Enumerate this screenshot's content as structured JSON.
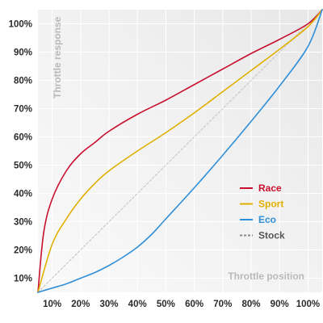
{
  "chart_data": {
    "type": "line",
    "xlabel": "Throttle position",
    "ylabel": "Throttle response",
    "xlim": [
      5,
      105
    ],
    "ylim": [
      5,
      105
    ],
    "xticks": [
      "10%",
      "20%",
      "30%",
      "40%",
      "50%",
      "60%",
      "70%",
      "80%",
      "90%",
      "100%"
    ],
    "yticks": [
      "10%",
      "20%",
      "30%",
      "40%",
      "50%",
      "60%",
      "70%",
      "80%",
      "90%",
      "100%"
    ],
    "grid": true,
    "legend_position": "center-right",
    "series": [
      {
        "name": "Race",
        "color": "#c8102e",
        "dashed": false,
        "x": [
          5,
          7,
          10,
          15,
          20,
          25,
          30,
          40,
          50,
          60,
          70,
          80,
          90,
          100,
          105
        ],
        "y": [
          5,
          26,
          38,
          48,
          54,
          58,
          62,
          68,
          73,
          78.5,
          84,
          89.5,
          94.5,
          100,
          105
        ]
      },
      {
        "name": "Sport",
        "color": "#e0b000",
        "dashed": false,
        "x": [
          5,
          10,
          15,
          20,
          25,
          30,
          40,
          50,
          60,
          70,
          80,
          90,
          100,
          105
        ],
        "y": [
          5,
          22,
          31,
          38,
          43.5,
          48,
          55,
          61.5,
          68.5,
          76,
          83.5,
          91,
          99,
          105
        ]
      },
      {
        "name": "Eco",
        "color": "#2f8fd8",
        "dashed": false,
        "x": [
          5,
          10,
          15,
          20,
          25,
          30,
          35,
          40,
          45,
          50,
          60,
          70,
          80,
          90,
          100,
          105
        ],
        "y": [
          5,
          6.5,
          8,
          10,
          12,
          14.5,
          17.5,
          21,
          25.5,
          31,
          42,
          53.5,
          65.5,
          78,
          92,
          105
        ]
      },
      {
        "name": "Stock",
        "color": "#c9c9c9",
        "dashed": true,
        "x": [
          5,
          105
        ],
        "y": [
          5,
          105
        ]
      }
    ]
  }
}
